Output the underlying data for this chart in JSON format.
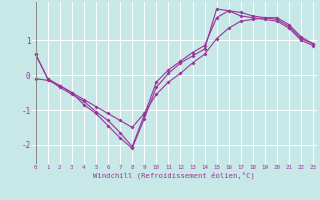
{
  "line1_x": [
    0,
    1,
    2,
    3,
    4,
    5,
    6,
    7,
    8,
    9,
    10,
    11,
    12,
    13,
    14,
    15,
    16,
    17,
    18,
    19,
    20,
    21,
    22,
    23
  ],
  "line1_y": [
    0.6,
    -0.1,
    -0.3,
    -0.5,
    -0.85,
    -1.1,
    -1.45,
    -1.8,
    -2.1,
    -1.25,
    -0.35,
    0.05,
    0.35,
    0.55,
    0.75,
    1.9,
    1.85,
    1.7,
    1.65,
    1.6,
    1.55,
    1.35,
    1.0,
    0.85
  ],
  "line2_x": [
    0,
    1,
    2,
    3,
    4,
    5,
    6,
    7,
    8,
    9,
    10,
    11,
    12,
    13,
    14,
    15,
    16,
    17,
    18,
    19,
    20,
    21,
    22,
    23
  ],
  "line2_y": [
    0.6,
    -0.1,
    -0.35,
    -0.55,
    -0.75,
    -1.05,
    -1.3,
    -1.65,
    -2.05,
    -1.15,
    -0.2,
    0.15,
    0.4,
    0.65,
    0.85,
    1.65,
    1.85,
    1.8,
    1.7,
    1.65,
    1.6,
    1.4,
    1.05,
    0.9
  ],
  "line3_x": [
    0,
    1,
    2,
    3,
    4,
    5,
    6,
    7,
    8,
    9,
    10,
    11,
    12,
    13,
    14,
    15,
    16,
    17,
    18,
    19,
    20,
    21,
    22,
    23
  ],
  "line3_y": [
    -0.1,
    -0.15,
    -0.3,
    -0.5,
    -0.7,
    -0.9,
    -1.1,
    -1.3,
    -1.5,
    -1.1,
    -0.55,
    -0.2,
    0.05,
    0.35,
    0.6,
    1.05,
    1.35,
    1.55,
    1.6,
    1.65,
    1.65,
    1.45,
    1.1,
    0.9
  ],
  "line_color": "#993399",
  "bg_color": "#c8e8e8",
  "grid_color": "#ffffff",
  "tick_label_color": "#993399",
  "yticks": [
    -2,
    -1,
    0,
    1
  ],
  "xticks": [
    0,
    1,
    2,
    3,
    4,
    5,
    6,
    7,
    8,
    9,
    10,
    11,
    12,
    13,
    14,
    15,
    16,
    17,
    18,
    19,
    20,
    21,
    22,
    23
  ],
  "xlabel": "Windchill (Refroidissement éolien,°C)",
  "ylim": [
    -2.55,
    2.1
  ],
  "xlim": [
    -0.3,
    23.3
  ],
  "marker": "D",
  "markersize": 2.0,
  "linewidth": 0.8
}
